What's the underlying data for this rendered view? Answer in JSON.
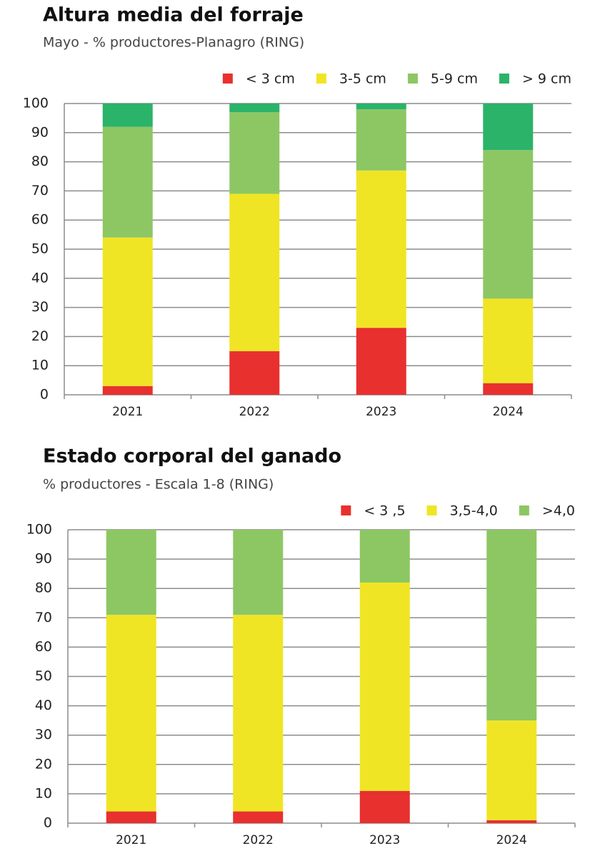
{
  "chart_data": [
    {
      "type": "stacked_bar",
      "title": "Altura media del forraje",
      "subtitle": "Mayo - % productores-Planagro (RING)",
      "categories": [
        "2021",
        "2022",
        "2023",
        "2024"
      ],
      "series": [
        {
          "name": "< 3 cm",
          "color": "#e8302f",
          "values": [
            3,
            15,
            23,
            4
          ]
        },
        {
          "name": "3-5 cm",
          "color": "#f0e524",
          "values": [
            51,
            54,
            54,
            29
          ]
        },
        {
          "name": "5-9 cm",
          "color": "#8dc764",
          "values": [
            38,
            28,
            21,
            51
          ]
        },
        {
          "name": "> 9 cm",
          "color": "#2bb36a",
          "values": [
            8,
            3,
            2,
            16
          ]
        }
      ],
      "ylim": [
        0,
        100
      ],
      "yticks": [
        0,
        10,
        20,
        30,
        40,
        50,
        60,
        70,
        80,
        90,
        100
      ],
      "grid": true,
      "legend": "top-right"
    },
    {
      "type": "stacked_bar",
      "title": "Estado corporal del ganado",
      "subtitle": "% productores - Escala 1-8 (RING)",
      "categories": [
        "2021",
        "2022",
        "2023",
        "2024"
      ],
      "series": [
        {
          "name": "< 3 ,5",
          "color": "#e8302f",
          "values": [
            4,
            4,
            11,
            1
          ]
        },
        {
          "name": "3,5-4,0",
          "color": "#f0e524",
          "values": [
            67,
            67,
            71,
            34
          ]
        },
        {
          "name": ">4,0",
          "color": "#8dc764",
          "values": [
            29,
            29,
            18,
            65
          ]
        }
      ],
      "ylim": [
        0,
        100
      ],
      "yticks": [
        0,
        10,
        20,
        30,
        40,
        50,
        60,
        70,
        80,
        90,
        100
      ],
      "grid": true,
      "legend": "top-right"
    }
  ]
}
